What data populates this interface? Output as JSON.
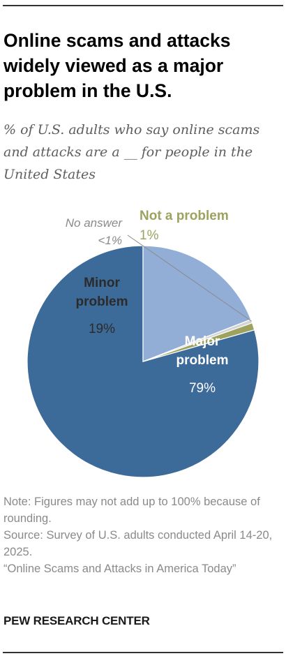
{
  "title": "Online scams and attacks widely viewed as a major problem in the U.S.",
  "subtitle": "% of U.S. adults who say online scams and attacks are a __ for people in the United States",
  "chart_data": {
    "type": "pie",
    "slices": [
      {
        "label": "Major problem",
        "value": 79,
        "value_label": "79%",
        "color": "#3d6b99"
      },
      {
        "label": "Minor problem",
        "value": 19,
        "value_label": "19%",
        "color": "#92aed6"
      },
      {
        "label": "No answer",
        "value": 0.5,
        "value_label": "<1%",
        "color": "#d4d4d4"
      },
      {
        "label": "Not a problem",
        "value": 1,
        "value_label": "1%",
        "color": "#9da35e"
      }
    ]
  },
  "notes": {
    "note": "Note: Figures may not add up to 100% because of rounding.",
    "source": "Source: Survey of U.S. adults conducted April 14-20, 2025.",
    "report": "“Online Scams and Attacks in America Today”"
  },
  "brand": "PEW RESEARCH CENTER"
}
